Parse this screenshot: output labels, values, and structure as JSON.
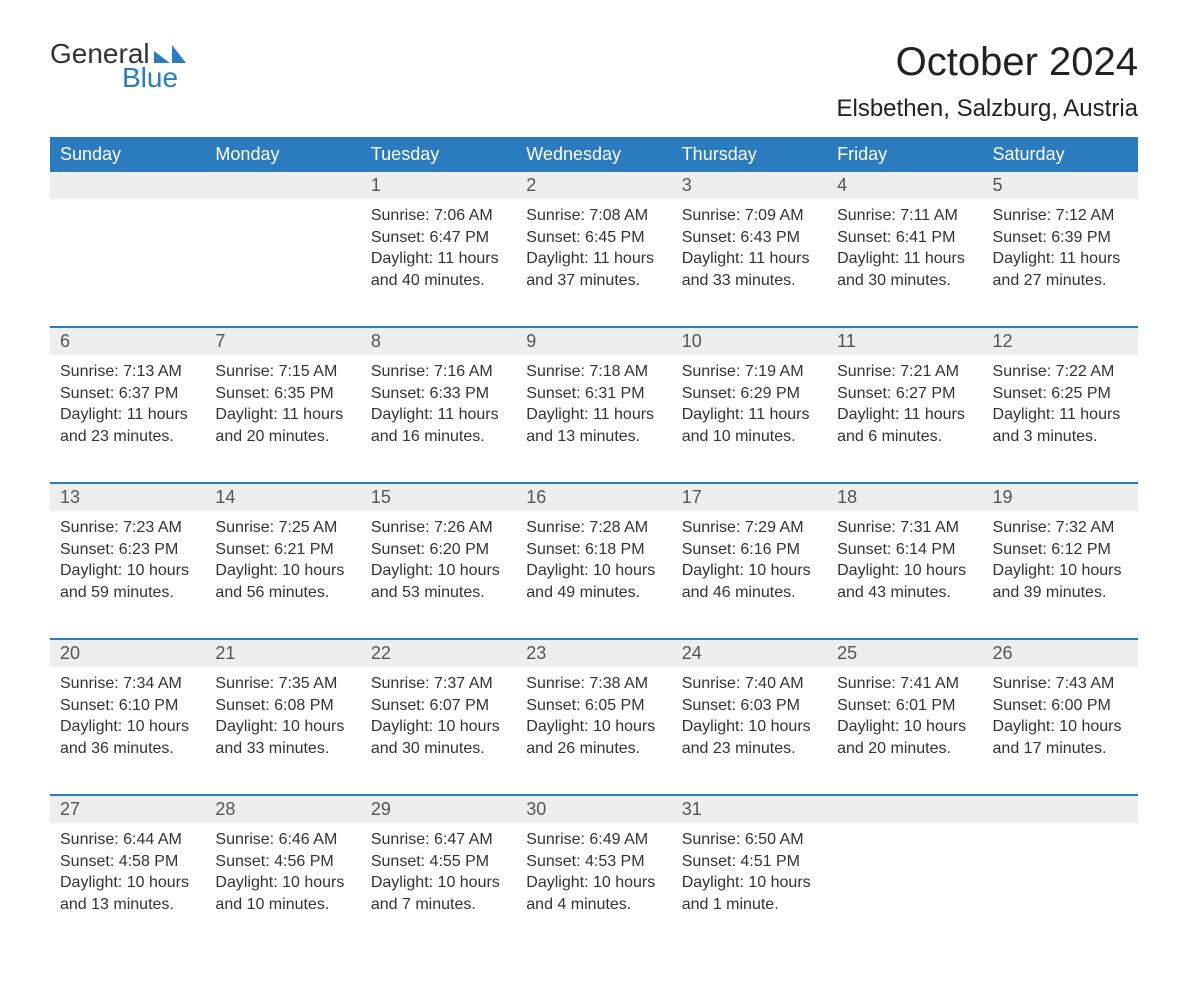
{
  "brand": {
    "text_general": "General",
    "text_blue": "Blue",
    "logo_color": "#2b7bbf",
    "text_color": "#333333"
  },
  "header": {
    "month_title": "October 2024",
    "location": "Elsbethen, Salzburg, Austria"
  },
  "typography": {
    "font_family": "Arial, Helvetica, sans-serif",
    "month_title_fontsize": 40,
    "location_fontsize": 24,
    "day_header_fontsize": 18,
    "daynum_fontsize": 18,
    "body_fontsize": 16
  },
  "colors": {
    "header_bg": "#2b7bbf",
    "header_text": "#ffffff",
    "daynum_bg": "#eeeeee",
    "daynum_text": "#555555",
    "body_text": "#333333",
    "background": "#ffffff",
    "week_separator": "#2b7bbf"
  },
  "calendar": {
    "type": "table",
    "columns": [
      "Sunday",
      "Monday",
      "Tuesday",
      "Wednesday",
      "Thursday",
      "Friday",
      "Saturday"
    ],
    "weeks": [
      [
        null,
        null,
        {
          "day": "1",
          "sunrise": "Sunrise: 7:06 AM",
          "sunset": "Sunset: 6:47 PM",
          "daylight1": "Daylight: 11 hours",
          "daylight2": "and 40 minutes."
        },
        {
          "day": "2",
          "sunrise": "Sunrise: 7:08 AM",
          "sunset": "Sunset: 6:45 PM",
          "daylight1": "Daylight: 11 hours",
          "daylight2": "and 37 minutes."
        },
        {
          "day": "3",
          "sunrise": "Sunrise: 7:09 AM",
          "sunset": "Sunset: 6:43 PM",
          "daylight1": "Daylight: 11 hours",
          "daylight2": "and 33 minutes."
        },
        {
          "day": "4",
          "sunrise": "Sunrise: 7:11 AM",
          "sunset": "Sunset: 6:41 PM",
          "daylight1": "Daylight: 11 hours",
          "daylight2": "and 30 minutes."
        },
        {
          "day": "5",
          "sunrise": "Sunrise: 7:12 AM",
          "sunset": "Sunset: 6:39 PM",
          "daylight1": "Daylight: 11 hours",
          "daylight2": "and 27 minutes."
        }
      ],
      [
        {
          "day": "6",
          "sunrise": "Sunrise: 7:13 AM",
          "sunset": "Sunset: 6:37 PM",
          "daylight1": "Daylight: 11 hours",
          "daylight2": "and 23 minutes."
        },
        {
          "day": "7",
          "sunrise": "Sunrise: 7:15 AM",
          "sunset": "Sunset: 6:35 PM",
          "daylight1": "Daylight: 11 hours",
          "daylight2": "and 20 minutes."
        },
        {
          "day": "8",
          "sunrise": "Sunrise: 7:16 AM",
          "sunset": "Sunset: 6:33 PM",
          "daylight1": "Daylight: 11 hours",
          "daylight2": "and 16 minutes."
        },
        {
          "day": "9",
          "sunrise": "Sunrise: 7:18 AM",
          "sunset": "Sunset: 6:31 PM",
          "daylight1": "Daylight: 11 hours",
          "daylight2": "and 13 minutes."
        },
        {
          "day": "10",
          "sunrise": "Sunrise: 7:19 AM",
          "sunset": "Sunset: 6:29 PM",
          "daylight1": "Daylight: 11 hours",
          "daylight2": "and 10 minutes."
        },
        {
          "day": "11",
          "sunrise": "Sunrise: 7:21 AM",
          "sunset": "Sunset: 6:27 PM",
          "daylight1": "Daylight: 11 hours",
          "daylight2": "and 6 minutes."
        },
        {
          "day": "12",
          "sunrise": "Sunrise: 7:22 AM",
          "sunset": "Sunset: 6:25 PM",
          "daylight1": "Daylight: 11 hours",
          "daylight2": "and 3 minutes."
        }
      ],
      [
        {
          "day": "13",
          "sunrise": "Sunrise: 7:23 AM",
          "sunset": "Sunset: 6:23 PM",
          "daylight1": "Daylight: 10 hours",
          "daylight2": "and 59 minutes."
        },
        {
          "day": "14",
          "sunrise": "Sunrise: 7:25 AM",
          "sunset": "Sunset: 6:21 PM",
          "daylight1": "Daylight: 10 hours",
          "daylight2": "and 56 minutes."
        },
        {
          "day": "15",
          "sunrise": "Sunrise: 7:26 AM",
          "sunset": "Sunset: 6:20 PM",
          "daylight1": "Daylight: 10 hours",
          "daylight2": "and 53 minutes."
        },
        {
          "day": "16",
          "sunrise": "Sunrise: 7:28 AM",
          "sunset": "Sunset: 6:18 PM",
          "daylight1": "Daylight: 10 hours",
          "daylight2": "and 49 minutes."
        },
        {
          "day": "17",
          "sunrise": "Sunrise: 7:29 AM",
          "sunset": "Sunset: 6:16 PM",
          "daylight1": "Daylight: 10 hours",
          "daylight2": "and 46 minutes."
        },
        {
          "day": "18",
          "sunrise": "Sunrise: 7:31 AM",
          "sunset": "Sunset: 6:14 PM",
          "daylight1": "Daylight: 10 hours",
          "daylight2": "and 43 minutes."
        },
        {
          "day": "19",
          "sunrise": "Sunrise: 7:32 AM",
          "sunset": "Sunset: 6:12 PM",
          "daylight1": "Daylight: 10 hours",
          "daylight2": "and 39 minutes."
        }
      ],
      [
        {
          "day": "20",
          "sunrise": "Sunrise: 7:34 AM",
          "sunset": "Sunset: 6:10 PM",
          "daylight1": "Daylight: 10 hours",
          "daylight2": "and 36 minutes."
        },
        {
          "day": "21",
          "sunrise": "Sunrise: 7:35 AM",
          "sunset": "Sunset: 6:08 PM",
          "daylight1": "Daylight: 10 hours",
          "daylight2": "and 33 minutes."
        },
        {
          "day": "22",
          "sunrise": "Sunrise: 7:37 AM",
          "sunset": "Sunset: 6:07 PM",
          "daylight1": "Daylight: 10 hours",
          "daylight2": "and 30 minutes."
        },
        {
          "day": "23",
          "sunrise": "Sunrise: 7:38 AM",
          "sunset": "Sunset: 6:05 PM",
          "daylight1": "Daylight: 10 hours",
          "daylight2": "and 26 minutes."
        },
        {
          "day": "24",
          "sunrise": "Sunrise: 7:40 AM",
          "sunset": "Sunset: 6:03 PM",
          "daylight1": "Daylight: 10 hours",
          "daylight2": "and 23 minutes."
        },
        {
          "day": "25",
          "sunrise": "Sunrise: 7:41 AM",
          "sunset": "Sunset: 6:01 PM",
          "daylight1": "Daylight: 10 hours",
          "daylight2": "and 20 minutes."
        },
        {
          "day": "26",
          "sunrise": "Sunrise: 7:43 AM",
          "sunset": "Sunset: 6:00 PM",
          "daylight1": "Daylight: 10 hours",
          "daylight2": "and 17 minutes."
        }
      ],
      [
        {
          "day": "27",
          "sunrise": "Sunrise: 6:44 AM",
          "sunset": "Sunset: 4:58 PM",
          "daylight1": "Daylight: 10 hours",
          "daylight2": "and 13 minutes."
        },
        {
          "day": "28",
          "sunrise": "Sunrise: 6:46 AM",
          "sunset": "Sunset: 4:56 PM",
          "daylight1": "Daylight: 10 hours",
          "daylight2": "and 10 minutes."
        },
        {
          "day": "29",
          "sunrise": "Sunrise: 6:47 AM",
          "sunset": "Sunset: 4:55 PM",
          "daylight1": "Daylight: 10 hours",
          "daylight2": "and 7 minutes."
        },
        {
          "day": "30",
          "sunrise": "Sunrise: 6:49 AM",
          "sunset": "Sunset: 4:53 PM",
          "daylight1": "Daylight: 10 hours",
          "daylight2": "and 4 minutes."
        },
        {
          "day": "31",
          "sunrise": "Sunrise: 6:50 AM",
          "sunset": "Sunset: 4:51 PM",
          "daylight1": "Daylight: 10 hours",
          "daylight2": "and 1 minute."
        },
        null,
        null
      ]
    ]
  }
}
